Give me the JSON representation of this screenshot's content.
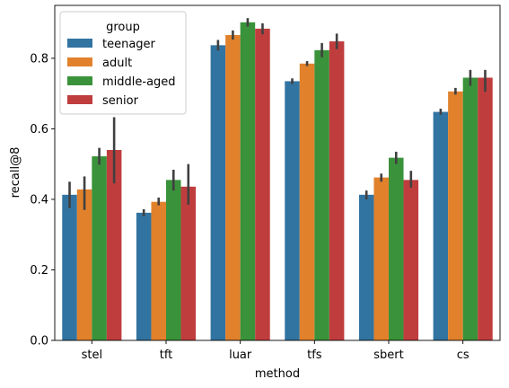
{
  "chart_data": {
    "type": "bar",
    "xlabel": "method",
    "ylabel": "recall@8",
    "ylim": [
      0,
      0.95
    ],
    "yticks": [
      0.0,
      0.2,
      0.4,
      0.6,
      0.8
    ],
    "ytick_labels": [
      "0.0",
      "0.2",
      "0.4",
      "0.6",
      "0.8"
    ],
    "categories": [
      "stel",
      "tft",
      "luar",
      "tfs",
      "sbert",
      "cs"
    ],
    "legend": {
      "title": "group",
      "placement": "top-left"
    },
    "grid": false,
    "series": [
      {
        "name": "teenager",
        "color": "#3274a1",
        "values": [
          0.413,
          0.362,
          0.837,
          0.735,
          0.413,
          0.648
        ],
        "err_low": [
          0.375,
          0.352,
          0.822,
          0.727,
          0.4,
          0.64
        ],
        "err_high": [
          0.45,
          0.372,
          0.852,
          0.743,
          0.425,
          0.657
        ]
      },
      {
        "name": "adult",
        "color": "#e1812c",
        "values": [
          0.428,
          0.393,
          0.866,
          0.785,
          0.462,
          0.706
        ],
        "err_low": [
          0.37,
          0.383,
          0.853,
          0.778,
          0.45,
          0.697
        ],
        "err_high": [
          0.465,
          0.405,
          0.879,
          0.792,
          0.473,
          0.716
        ]
      },
      {
        "name": "middle-aged",
        "color": "#3a923a",
        "values": [
          0.522,
          0.455,
          0.902,
          0.823,
          0.518,
          0.745
        ],
        "err_low": [
          0.498,
          0.425,
          0.89,
          0.803,
          0.5,
          0.722
        ],
        "err_high": [
          0.546,
          0.484,
          0.914,
          0.843,
          0.535,
          0.767
        ]
      },
      {
        "name": "senior",
        "color": "#c03d3e",
        "values": [
          0.54,
          0.436,
          0.884,
          0.848,
          0.455,
          0.745
        ],
        "err_low": [
          0.445,
          0.385,
          0.868,
          0.826,
          0.433,
          0.705
        ],
        "err_high": [
          0.633,
          0.5,
          0.899,
          0.87,
          0.481,
          0.767
        ]
      }
    ]
  }
}
